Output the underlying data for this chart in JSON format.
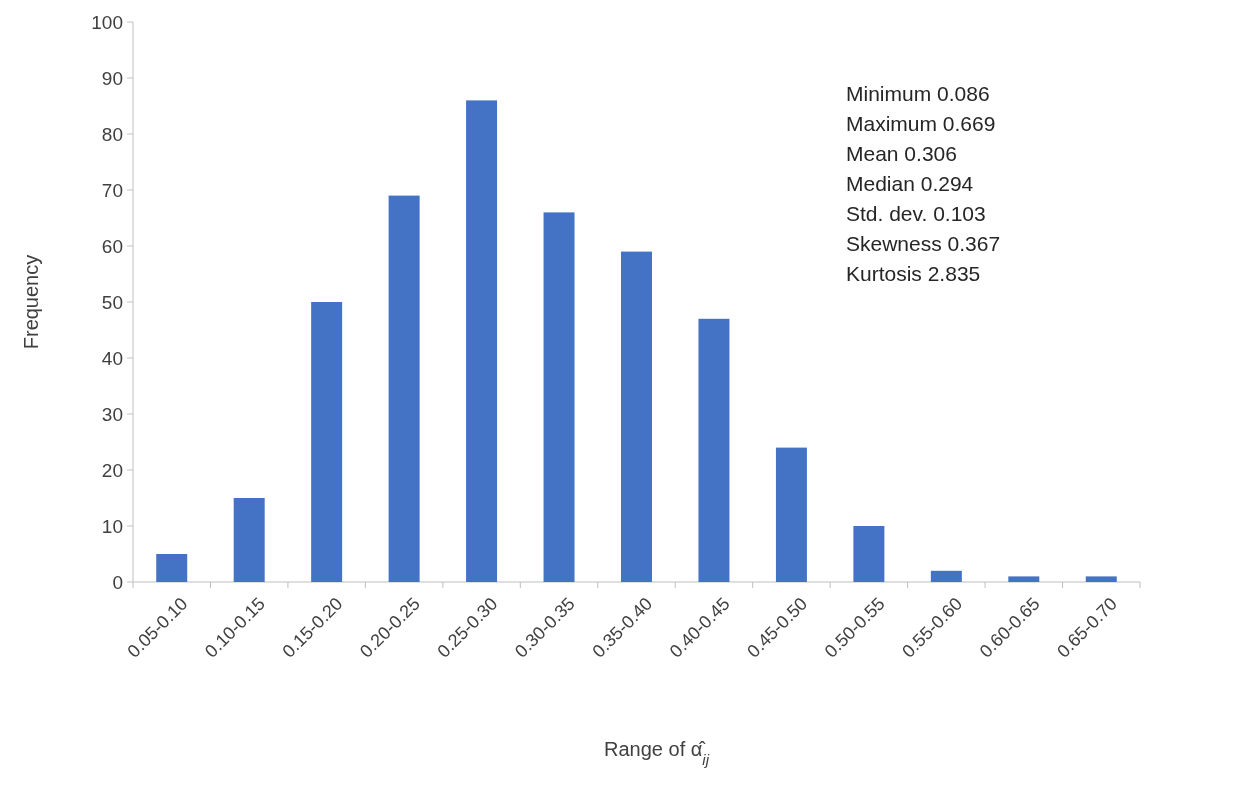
{
  "chart_data": {
    "type": "bar",
    "categories": [
      "0.05-0.10",
      "0.10-0.15",
      "0.15-0.20",
      "0.20-0.25",
      "0.25-0.30",
      "0.30-0.35",
      "0.35-0.40",
      "0.40-0.45",
      "0.45-0.50",
      "0.50-0.55",
      "0.55-0.60",
      "0.60-0.65",
      "0.65-0.70"
    ],
    "values": [
      5,
      15,
      50,
      69,
      86,
      66,
      59,
      47,
      24,
      10,
      2,
      1,
      1
    ],
    "color": "#4472c4",
    "ylim": [
      0,
      100
    ],
    "yticks": [
      0,
      10,
      20,
      30,
      40,
      50,
      60,
      70,
      80,
      90,
      100
    ],
    "xlabel": "Range of α̂$_{ij}$",
    "ylabel": "Frequency",
    "annotations": [
      "Minimum 0.086",
      "Maximum 0.669",
      "Mean 0.306",
      "Median 0.294",
      "Std. dev. 0.103",
      "Skewness 0.367",
      "Kurtosis 2.835"
    ]
  }
}
